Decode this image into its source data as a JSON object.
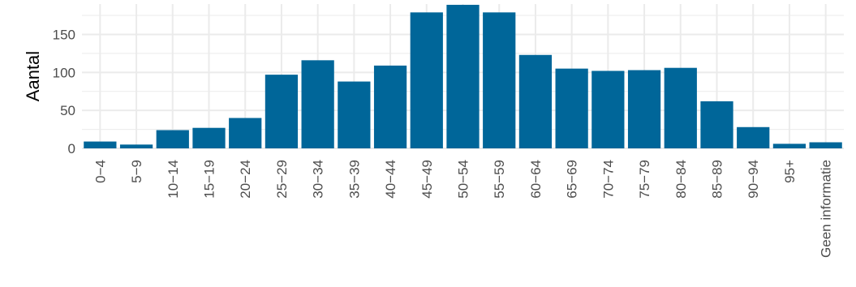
{
  "chart_data": {
    "type": "bar",
    "title": "",
    "xlabel": "",
    "ylabel": "Aantal",
    "categories": [
      "0−4",
      "5−9",
      "10−14",
      "15−19",
      "20−24",
      "25−29",
      "30−34",
      "35−39",
      "40−44",
      "45−49",
      "50−54",
      "55−59",
      "60−64",
      "65−69",
      "70−74",
      "75−79",
      "80−84",
      "85−89",
      "90−94",
      "95+",
      "Geen informatie"
    ],
    "values": [
      9,
      5,
      24,
      27,
      40,
      97,
      116,
      88,
      109,
      179,
      189,
      179,
      123,
      105,
      102,
      103,
      106,
      62,
      28,
      6,
      8
    ],
    "ylim": [
      0,
      190
    ],
    "yticks": [
      0,
      50,
      100,
      150
    ],
    "grid": true,
    "legend": "none",
    "bar_color": "#006699",
    "grid_color": "#ebebeb"
  }
}
